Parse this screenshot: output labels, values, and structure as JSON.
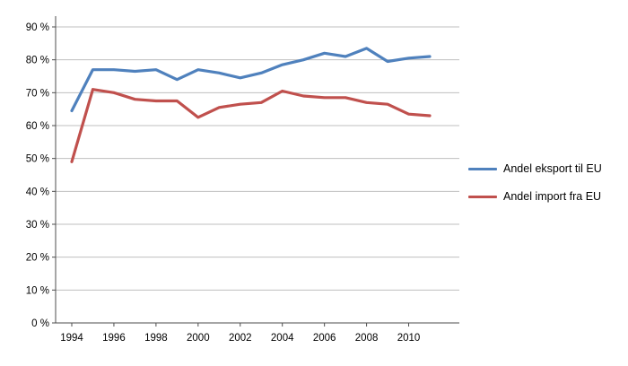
{
  "chart_data": {
    "type": "line",
    "x": [
      1994,
      1995,
      1996,
      1997,
      1998,
      1999,
      2000,
      2001,
      2002,
      2003,
      2004,
      2005,
      2006,
      2007,
      2008,
      2009,
      2010,
      2011
    ],
    "series": [
      {
        "name": "Andel eksport til EU",
        "color": "#4F81BD",
        "values": [
          64.5,
          77,
          77,
          76.5,
          77,
          74,
          77,
          76,
          74.5,
          76,
          78.5,
          80,
          82,
          81,
          83.5,
          79.5,
          80.5,
          81
        ]
      },
      {
        "name": "Andel import fra EU",
        "color": "#C0504D",
        "values": [
          49,
          71,
          70,
          68,
          67.5,
          67.5,
          62.5,
          65.5,
          66.5,
          67,
          70.5,
          69,
          68.5,
          68.5,
          67,
          66.5,
          63.5,
          63
        ]
      }
    ],
    "title": "",
    "xlabel": "",
    "ylabel": "",
    "ylim": [
      0,
      90
    ],
    "ytick_step": 10,
    "ytick_suffix": " %",
    "xticks": [
      1994,
      1996,
      1998,
      2000,
      2002,
      2004,
      2006,
      2008,
      2010
    ],
    "grid": "horizontal",
    "legend_position": "right",
    "colors": {
      "grid": "#bfbfbf",
      "axis": "#4d4d4d"
    }
  },
  "legend": {
    "items": [
      {
        "label": "Andel eksport til EU",
        "color": "#4F81BD"
      },
      {
        "label": "Andel import fra EU",
        "color": "#C0504D"
      }
    ]
  }
}
